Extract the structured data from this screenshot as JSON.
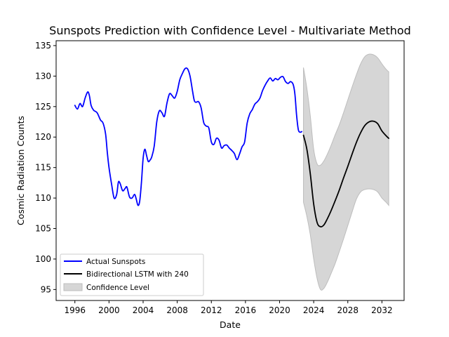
{
  "chart_data": {
    "type": "line",
    "title": "Sunspots Prediction with Confidence Level - Multivariate Method",
    "xlabel": "Date",
    "ylabel": "Cosmic Radiation Counts",
    "xlim": [
      1993.8,
      2034.6
    ],
    "ylim": [
      93.2,
      135.8
    ],
    "xticks": [
      1996,
      2000,
      2004,
      2008,
      2012,
      2016,
      2020,
      2024,
      2028,
      2032
    ],
    "yticks": [
      95,
      100,
      105,
      110,
      115,
      120,
      125,
      130,
      135
    ],
    "grid": false,
    "legend_position": "lower-left",
    "colors": {
      "actual": "#0000ff",
      "predicted": "#000000",
      "confidence_fill": "#d6d6d6",
      "confidence_edge": "#bdbdbd"
    },
    "series": [
      {
        "name": "Actual Sunspots",
        "x": [
          1996.0,
          1996.3,
          1996.6,
          1996.9,
          1997.2,
          1997.5,
          1997.7,
          1997.9,
          1998.2,
          1998.6,
          1999.0,
          1999.3,
          1999.6,
          1999.8,
          2000.0,
          2000.3,
          2000.6,
          2000.9,
          2001.1,
          2001.3,
          2001.6,
          2001.9,
          2002.1,
          2002.4,
          2002.7,
          2003.0,
          2003.2,
          2003.4,
          2003.6,
          2003.8,
          2004.0,
          2004.2,
          2004.4,
          2004.6,
          2004.8,
          2005.0,
          2005.3,
          2005.6,
          2005.9,
          2006.2,
          2006.5,
          2006.8,
          2007.1,
          2007.4,
          2007.7,
          2008.0,
          2008.3,
          2008.6,
          2008.9,
          2009.2,
          2009.5,
          2009.8,
          2010.0,
          2010.2,
          2010.5,
          2010.8,
          2011.1,
          2011.4,
          2011.7,
          2012.0,
          2012.3,
          2012.6,
          2012.9,
          2013.2,
          2013.5,
          2013.8,
          2014.1,
          2014.4,
          2014.7,
          2015.0,
          2015.3,
          2015.6,
          2015.9,
          2016.2,
          2016.5,
          2016.8,
          2017.1,
          2017.4,
          2017.7,
          2018.0,
          2018.3,
          2018.6,
          2018.9,
          2019.2,
          2019.5,
          2019.8,
          2020.1,
          2020.4,
          2020.7,
          2021.0,
          2021.3,
          2021.6,
          2021.8,
          2022.0,
          2022.2,
          2022.4,
          2022.6
        ],
        "y": [
          125.2,
          124.6,
          125.5,
          125.0,
          126.4,
          127.4,
          126.8,
          125.2,
          124.4,
          124.0,
          122.8,
          122.3,
          120.5,
          117.5,
          115.0,
          112.3,
          110.0,
          110.6,
          112.6,
          112.4,
          111.2,
          111.6,
          111.8,
          110.2,
          110.0,
          110.6,
          109.8,
          108.8,
          109.5,
          112.5,
          116.5,
          118.0,
          117.0,
          116.0,
          116.2,
          116.7,
          118.5,
          122.5,
          124.3,
          124.0,
          123.4,
          125.6,
          127.1,
          126.8,
          126.4,
          127.5,
          129.4,
          130.4,
          131.2,
          131.2,
          130.0,
          127.5,
          126.0,
          125.7,
          125.8,
          124.8,
          122.4,
          121.8,
          121.5,
          119.2,
          118.8,
          119.8,
          119.5,
          118.2,
          118.6,
          118.7,
          118.2,
          117.8,
          117.3,
          116.3,
          117.2,
          118.4,
          119.2,
          122.3,
          123.8,
          124.5,
          125.4,
          125.8,
          126.4,
          127.6,
          128.5,
          129.2,
          129.7,
          129.2,
          129.6,
          129.4,
          129.8,
          129.9,
          129.1,
          128.8,
          129.1,
          128.6,
          127.0,
          123.5,
          121.2,
          120.8,
          120.9
        ]
      },
      {
        "name": "Bidirectional LSTM with 240",
        "x": [
          2022.8,
          2023.2,
          2023.6,
          2024.0,
          2024.4,
          2024.8,
          2025.2,
          2025.6,
          2026.0,
          2026.5,
          2027.0,
          2027.5,
          2028.0,
          2028.5,
          2029.0,
          2029.5,
          2030.0,
          2030.5,
          2031.0,
          2031.5,
          2032.0,
          2032.5,
          2032.8
        ],
        "y": [
          120.3,
          118.0,
          114.0,
          109.0,
          106.0,
          105.3,
          105.6,
          106.6,
          107.8,
          109.5,
          111.3,
          113.3,
          115.2,
          117.2,
          119.1,
          120.7,
          121.9,
          122.5,
          122.6,
          122.2,
          121.0,
          120.2,
          119.8
        ]
      }
    ],
    "confidence_band": {
      "name": "Confidence Level",
      "x": [
        2022.8,
        2023.2,
        2023.6,
        2024.0,
        2024.4,
        2024.8,
        2025.2,
        2025.6,
        2026.0,
        2026.5,
        2027.0,
        2027.5,
        2028.0,
        2028.5,
        2029.0,
        2029.5,
        2030.0,
        2030.5,
        2031.0,
        2031.5,
        2032.0,
        2032.5,
        2032.8
      ],
      "upper": [
        131.4,
        128.0,
        123.5,
        118.0,
        115.6,
        115.4,
        116.1,
        117.2,
        118.5,
        120.3,
        122.0,
        124.0,
        126.1,
        128.2,
        130.2,
        132.0,
        133.2,
        133.6,
        133.5,
        133.0,
        132.0,
        131.1,
        130.7
      ],
      "lower": [
        109.3,
        107.0,
        104.0,
        100.0,
        96.8,
        95.0,
        95.2,
        96.2,
        97.5,
        99.2,
        101.2,
        103.3,
        105.5,
        107.7,
        109.8,
        111.0,
        111.4,
        111.5,
        111.4,
        111.0,
        110.0,
        109.3,
        108.8
      ]
    }
  }
}
